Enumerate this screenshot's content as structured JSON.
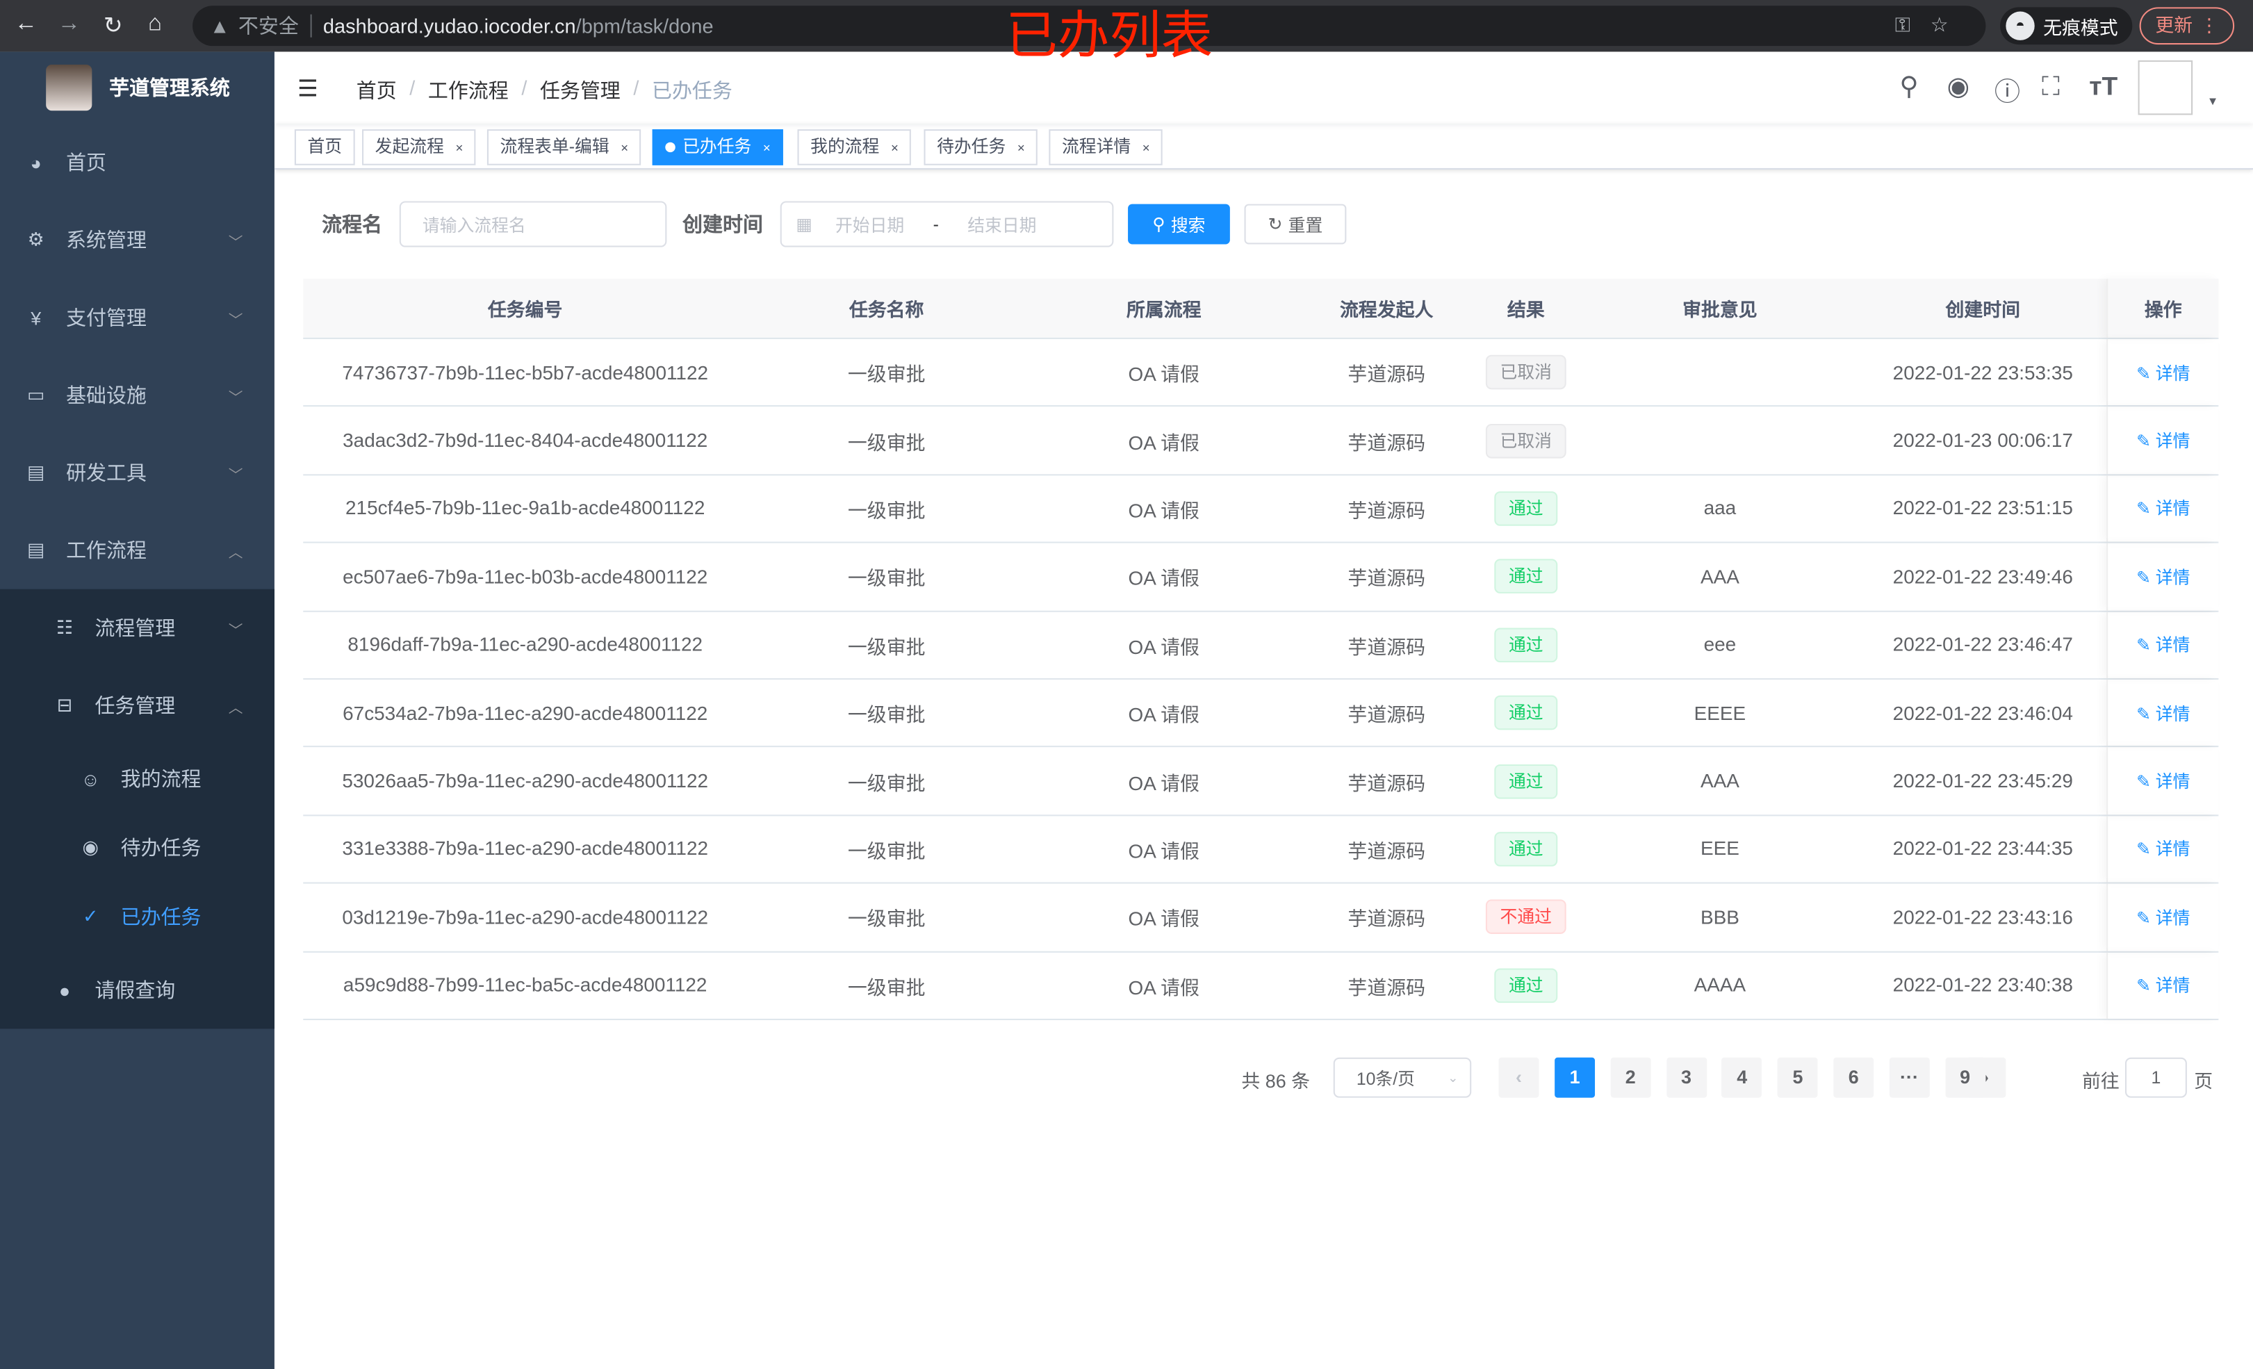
{
  "browser": {
    "security": "不安全",
    "url_host": "dashboard.yudao.iocoder.cn",
    "url_path": "/bpm/task/done",
    "incognito": "无痕模式",
    "update": "更新"
  },
  "annotation": "已办列表",
  "sidebar": {
    "app_title": "芋道管理系统",
    "items": [
      {
        "label": "首页",
        "icon": "dashboard-icon"
      },
      {
        "label": "系统管理",
        "icon": "gear-icon"
      },
      {
        "label": "支付管理",
        "icon": "yen-icon"
      },
      {
        "label": "基础设施",
        "icon": "monitor-icon"
      },
      {
        "label": "研发工具",
        "icon": "toolbox-icon"
      },
      {
        "label": "工作流程",
        "icon": "toolbox-icon"
      }
    ],
    "sub": [
      {
        "label": "流程管理",
        "icon": "list-icon"
      },
      {
        "label": "任务管理",
        "icon": "tree-icon"
      },
      {
        "label": "我的流程",
        "icon": "people-icon"
      },
      {
        "label": "待办任务",
        "icon": "eye-icon"
      },
      {
        "label": "已办任务",
        "icon": "done-icon",
        "active": true
      },
      {
        "label": "请假查询",
        "icon": "user-icon"
      }
    ]
  },
  "breadcrumb": [
    "首页",
    "工作流程",
    "任务管理",
    "已办任务"
  ],
  "tags": [
    "首页",
    "发起流程",
    "流程表单-编辑",
    "已办任务",
    "我的流程",
    "待办任务",
    "流程详情"
  ],
  "active_tag": "已办任务",
  "filter": {
    "name_label": "流程名",
    "name_placeholder": "请输入流程名",
    "time_label": "创建时间",
    "start_placeholder": "开始日期",
    "range_sep": "-",
    "end_placeholder": "结束日期",
    "search": "搜索",
    "reset": "重置"
  },
  "table": {
    "columns": [
      "任务编号",
      "任务名称",
      "所属流程",
      "流程发起人",
      "结果",
      "审批意见",
      "创建时间",
      "操作"
    ],
    "action_label": "详情",
    "rows": [
      {
        "id": "74736737-7b9b-11ec-b5b7-acde48001122",
        "name": "一级审批",
        "process": "OA 请假",
        "starter": "芋道源码",
        "result": "已取消",
        "status": "cancel",
        "comment": "",
        "time": "2022-01-22 23:53:35"
      },
      {
        "id": "3adac3d2-7b9d-11ec-8404-acde48001122",
        "name": "一级审批",
        "process": "OA 请假",
        "starter": "芋道源码",
        "result": "已取消",
        "status": "cancel",
        "comment": "",
        "time": "2022-01-23 00:06:17"
      },
      {
        "id": "215cf4e5-7b9b-11ec-9a1b-acde48001122",
        "name": "一级审批",
        "process": "OA 请假",
        "starter": "芋道源码",
        "result": "通过",
        "status": "pass",
        "comment": "aaa",
        "time": "2022-01-22 23:51:15"
      },
      {
        "id": "ec507ae6-7b9a-11ec-b03b-acde48001122",
        "name": "一级审批",
        "process": "OA 请假",
        "starter": "芋道源码",
        "result": "通过",
        "status": "pass",
        "comment": "AAA",
        "time": "2022-01-22 23:49:46"
      },
      {
        "id": "8196daff-7b9a-11ec-a290-acde48001122",
        "name": "一级审批",
        "process": "OA 请假",
        "starter": "芋道源码",
        "result": "通过",
        "status": "pass",
        "comment": "eee",
        "time": "2022-01-22 23:46:47"
      },
      {
        "id": "67c534a2-7b9a-11ec-a290-acde48001122",
        "name": "一级审批",
        "process": "OA 请假",
        "starter": "芋道源码",
        "result": "通过",
        "status": "pass",
        "comment": "EEEE",
        "time": "2022-01-22 23:46:04"
      },
      {
        "id": "53026aa5-7b9a-11ec-a290-acde48001122",
        "name": "一级审批",
        "process": "OA 请假",
        "starter": "芋道源码",
        "result": "通过",
        "status": "pass",
        "comment": "AAA",
        "time": "2022-01-22 23:45:29"
      },
      {
        "id": "331e3388-7b9a-11ec-a290-acde48001122",
        "name": "一级审批",
        "process": "OA 请假",
        "starter": "芋道源码",
        "result": "通过",
        "status": "pass",
        "comment": "EEE",
        "time": "2022-01-22 23:44:35"
      },
      {
        "id": "03d1219e-7b9a-11ec-a290-acde48001122",
        "name": "一级审批",
        "process": "OA 请假",
        "starter": "芋道源码",
        "result": "不通过",
        "status": "reject",
        "comment": "BBB",
        "time": "2022-01-22 23:43:16"
      },
      {
        "id": "a59c9d88-7b99-11ec-ba5c-acde48001122",
        "name": "一级审批",
        "process": "OA 请假",
        "starter": "芋道源码",
        "result": "通过",
        "status": "pass",
        "comment": "AAAA",
        "time": "2022-01-22 23:40:38"
      }
    ]
  },
  "pagination": {
    "total": "共 86 条",
    "page_size": "10条/页",
    "pages": [
      "1",
      "2",
      "3",
      "4",
      "5",
      "6",
      "···",
      "9"
    ],
    "current": "1",
    "goto_label": "前往",
    "goto_value": "1",
    "page_suffix": "页"
  },
  "colors": {
    "sidebar": "#304156",
    "submenu": "#1f2d3d",
    "primary": "#1890ff",
    "pass": "#13ce66",
    "reject": "#ff4949",
    "cancel": "#909399"
  }
}
